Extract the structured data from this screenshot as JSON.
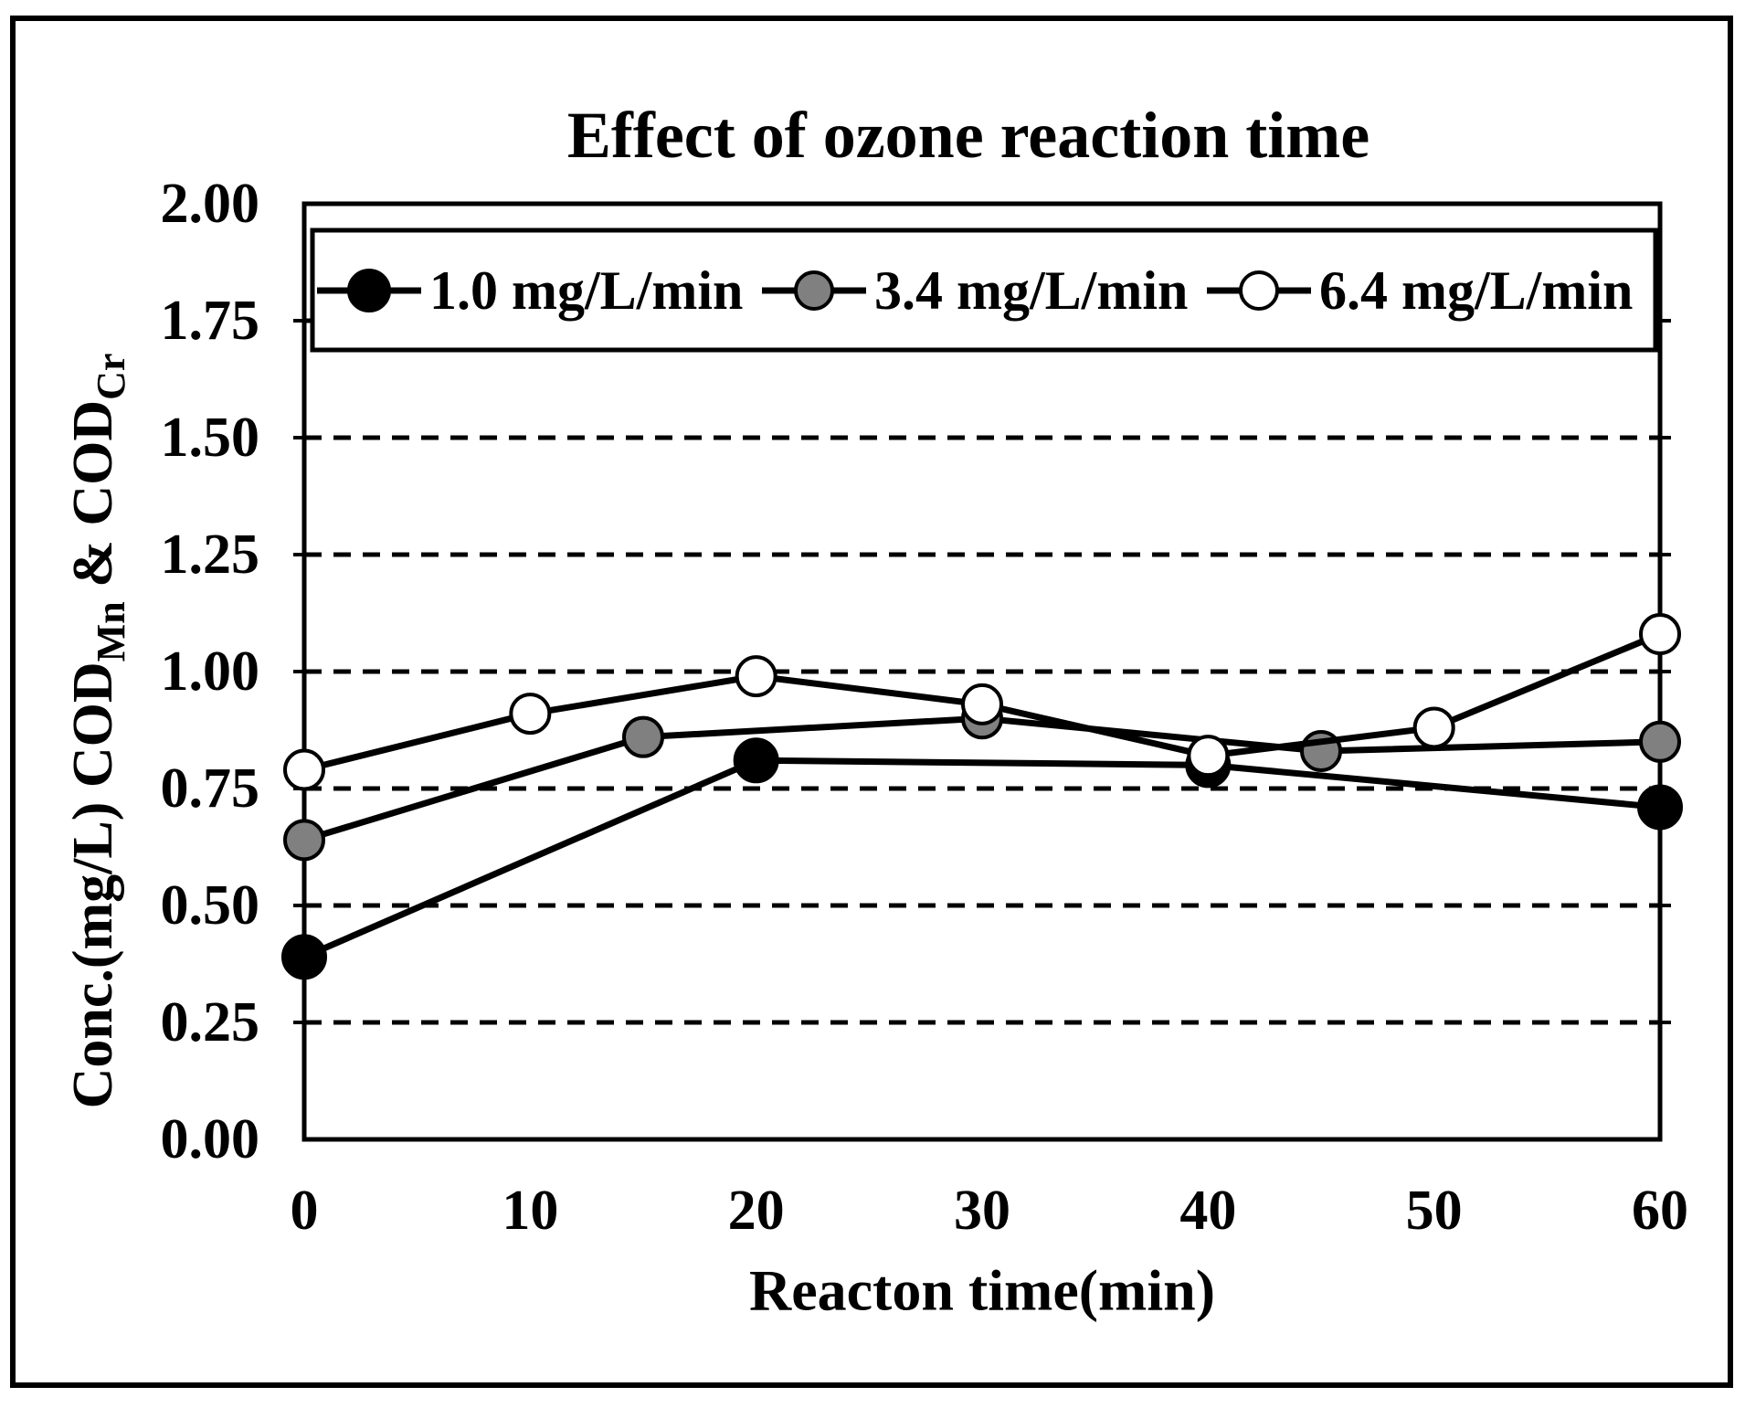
{
  "chart_data": {
    "type": "line",
    "title": "Effect of ozone reaction time",
    "xlabel": "Reacton time(min)",
    "ylabel_plain": "Conc.(mg/L) CODMn & CODCr",
    "ylabel_parts": [
      {
        "text": "Conc.(mg/L) COD",
        "sub": false
      },
      {
        "text": "Mn",
        "sub": true
      },
      {
        "text": " & COD",
        "sub": false
      },
      {
        "text": "Cr",
        "sub": true
      }
    ],
    "xlim": [
      0,
      60
    ],
    "ylim": [
      0.0,
      2.0
    ],
    "x_ticklabels": [
      "0",
      "10",
      "20",
      "30",
      "40",
      "50",
      "60"
    ],
    "y_ticklabels": [
      "0.00",
      "0.25",
      "0.50",
      "0.75",
      "1.00",
      "1.25",
      "1.50",
      "1.75",
      "2.00"
    ],
    "y_tick_step": 0.25,
    "grid": "horizontal-dashed",
    "legend_position": "top-inside-full-width-box",
    "line_color": "#000000",
    "background_color": "#ffffff",
    "gray_fill": "#808080",
    "series": [
      {
        "name": "1.0 mg/L/min",
        "marker": "filled-circle",
        "marker_fill": "#000000",
        "x": [
          0,
          20,
          40,
          60
        ],
        "y": [
          0.39,
          0.81,
          0.8,
          0.71
        ]
      },
      {
        "name": "3.4 mg/L/min",
        "marker": "gray-circle",
        "marker_fill": "#808080",
        "x": [
          0,
          15,
          30,
          45,
          60
        ],
        "y": [
          0.64,
          0.86,
          0.9,
          0.83,
          0.85
        ]
      },
      {
        "name": "6.4 mg/L/min",
        "marker": "open-circle",
        "marker_fill": "#ffffff",
        "x": [
          0,
          10,
          20,
          30,
          40,
          50,
          60
        ],
        "y": [
          0.79,
          0.91,
          0.99,
          0.93,
          0.82,
          0.88,
          1.08
        ]
      }
    ]
  }
}
